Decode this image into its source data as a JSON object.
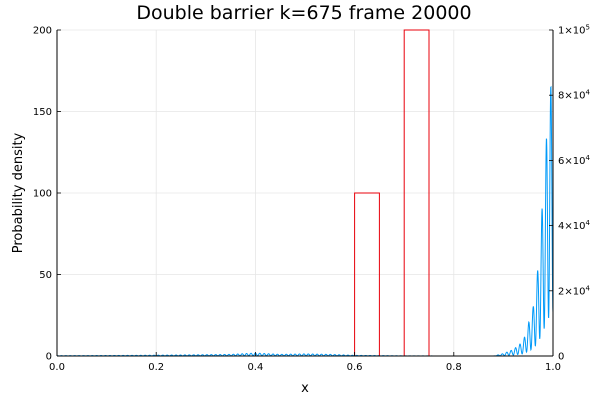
{
  "chart_data": {
    "type": "line",
    "title": "Double barrier k=675 frame 20000",
    "xlabel": "x",
    "ylabel": "Probability density",
    "xlim": [
      0,
      1
    ],
    "ylim": [
      0,
      200
    ],
    "y2lim": [
      0,
      100000
    ],
    "grid": true,
    "legend": "none",
    "x_ticks": [
      "0.0",
      "0.2",
      "0.4",
      "0.6",
      "0.8",
      "1.0"
    ],
    "x_tick_values": [
      0,
      0.2,
      0.4,
      0.6,
      0.8,
      1.0
    ],
    "y_ticks": [
      "0",
      "50",
      "100",
      "150",
      "200"
    ],
    "y_tick_values": [
      0,
      50,
      100,
      150,
      200
    ],
    "y2_ticks": [
      {
        "value": 0,
        "mantissa": "0",
        "exponent": ""
      },
      {
        "value": 20000,
        "mantissa": "2×10",
        "exponent": "4"
      },
      {
        "value": 40000,
        "mantissa": "4×10",
        "exponent": "4"
      },
      {
        "value": 60000,
        "mantissa": "6×10",
        "exponent": "4"
      },
      {
        "value": 80000,
        "mantissa": "8×10",
        "exponent": "4"
      },
      {
        "value": 100000,
        "mantissa": "1×10",
        "exponent": "5"
      }
    ],
    "series": [
      {
        "color": "#009af9",
        "axis": "left",
        "kind": "oscillating-envelope",
        "envelope": [
          [
            0.0,
            0.2
          ],
          [
            0.1,
            0.3
          ],
          [
            0.2,
            0.5
          ],
          [
            0.3,
            0.8
          ],
          [
            0.35,
            1.0
          ],
          [
            0.4,
            1.8
          ],
          [
            0.45,
            1.0
          ],
          [
            0.5,
            1.3
          ],
          [
            0.55,
            1.0
          ],
          [
            0.6,
            0.4
          ],
          [
            0.7,
            0.1
          ],
          [
            0.8,
            0.0
          ],
          [
            0.88,
            0.0
          ],
          [
            0.9,
            1.5
          ],
          [
            0.92,
            4
          ],
          [
            0.94,
            9
          ],
          [
            0.96,
            30
          ],
          [
            0.97,
            55
          ],
          [
            0.98,
            100
          ],
          [
            0.99,
            150
          ],
          [
            1.0,
            178
          ]
        ]
      },
      {
        "color": "#e26f46",
        "stroke": "#e8000b",
        "axis": "right",
        "kind": "step",
        "points": [
          [
            0.0,
            0
          ],
          [
            0.6,
            0
          ],
          [
            0.6,
            50000
          ],
          [
            0.65,
            50000
          ],
          [
            0.65,
            0
          ],
          [
            0.7,
            0
          ],
          [
            0.7,
            100000
          ],
          [
            0.75,
            100000
          ],
          [
            0.75,
            0
          ],
          [
            1.0,
            0
          ]
        ]
      }
    ]
  }
}
